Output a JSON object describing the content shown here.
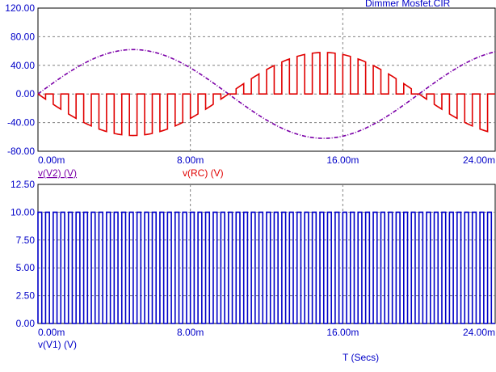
{
  "chart_data": [
    {
      "type": "line",
      "title": "Dimmer Mosfet.CIR",
      "xlabel": "",
      "ylabel": "",
      "xlim": [
        0,
        24
      ],
      "ylim": [
        -80,
        120
      ],
      "x_ticks": [
        "0.00m",
        "8.00m",
        "16.00m",
        "24.00m"
      ],
      "y_ticks": [
        "120.00",
        "80.00",
        "40.00",
        "0.00",
        "-40.00",
        "-80.00"
      ],
      "grid": true,
      "series": [
        {
          "name": "v(V2) (V)",
          "color": "#7b00a8",
          "style": "dash-dot",
          "shape": "sine",
          "amplitude": 62,
          "period_ms": 20,
          "x": [
            0,
            5,
            10,
            15,
            20,
            24
          ],
          "y": [
            0,
            62,
            0,
            -62,
            0,
            59
          ]
        },
        {
          "name": "v(RC) (V)",
          "color": "#e00000",
          "style": "solid",
          "shape": "chopped sine (inverted)",
          "amplitude": 58,
          "period_ms": 20,
          "switch_period_ms": 0.8,
          "x": [
            0,
            5,
            10,
            15,
            20,
            24
          ],
          "y": [
            0,
            -58,
            0,
            55,
            0,
            -55
          ]
        }
      ]
    },
    {
      "type": "line",
      "xlabel": "T (Secs)",
      "ylabel": "",
      "xlim": [
        0,
        24
      ],
      "ylim": [
        0,
        12.5
      ],
      "x_ticks": [
        "0.00m",
        "8.00m",
        "16.00m",
        "24.00m"
      ],
      "y_ticks": [
        "12.50",
        "10.00",
        "7.50",
        "5.00",
        "2.50",
        "0.00"
      ],
      "grid": true,
      "series": [
        {
          "name": "v(V1) (V)",
          "color": "#0000c8",
          "style": "solid",
          "shape": "square wave",
          "low": 0,
          "high": 10,
          "period_ms": 0.4
        }
      ]
    }
  ]
}
